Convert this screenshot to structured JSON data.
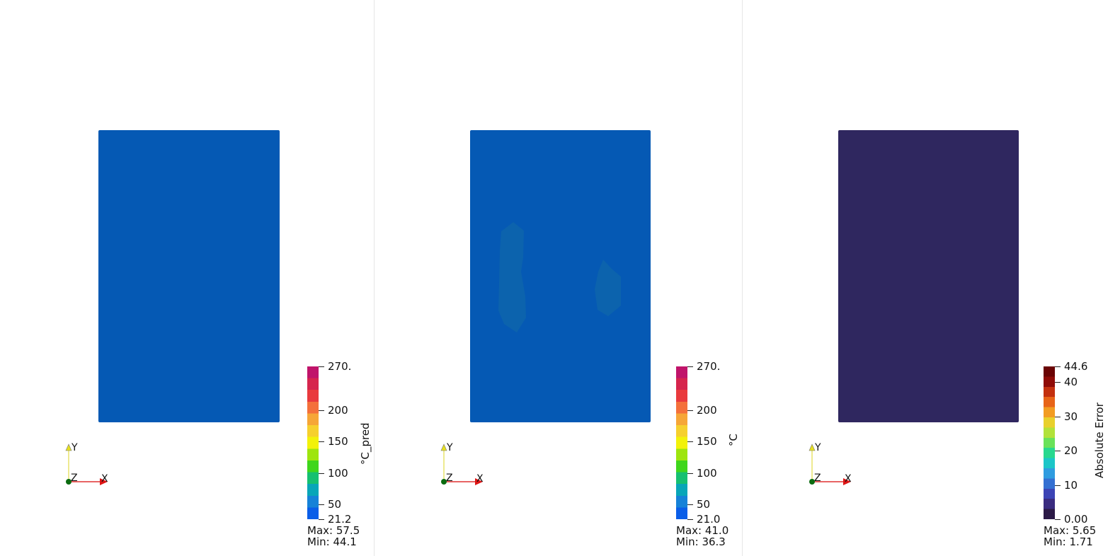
{
  "views": [
    {
      "id": "predicted",
      "mesh_color": "#0559b4",
      "colorbar": {
        "title": "°C_pred",
        "gradient": [
          "#0a5ee8",
          "#1682d8",
          "#08a6b8",
          "#16c071",
          "#3fd61c",
          "#9ee50e",
          "#f2f20a",
          "#f6d02e",
          "#f6a637",
          "#f4703b",
          "#e93a3d",
          "#d6254d",
          "#c0146a"
        ],
        "ticks": [
          {
            "label": "270.",
            "frac": 1.0
          },
          {
            "label": "200",
            "frac": 0.7129
          },
          {
            "label": "150",
            "frac": 0.508
          },
          {
            "label": "100",
            "frac": 0.3031
          },
          {
            "label": "50",
            "frac": 0.0982
          },
          {
            "label": "21.2",
            "frac": 0.0
          }
        ],
        "max_text": "Max: 57.5",
        "min_text": "Min: 44.1"
      },
      "axes": {
        "x": "X",
        "y": "Y",
        "z": "Z"
      }
    },
    {
      "id": "ground-truth",
      "mesh_color": "#0559b4",
      "blob_color": "#0c63ad",
      "colorbar": {
        "title": "°C",
        "gradient": [
          "#0a5ee8",
          "#1682d8",
          "#08a6b8",
          "#16c071",
          "#3fd61c",
          "#9ee50e",
          "#f2f20a",
          "#f6d02e",
          "#f6a637",
          "#f4703b",
          "#e93a3d",
          "#d6254d",
          "#c0146a"
        ],
        "ticks": [
          {
            "label": "270.",
            "frac": 1.0
          },
          {
            "label": "200",
            "frac": 0.7124
          },
          {
            "label": "150",
            "frac": 0.5072
          },
          {
            "label": "100",
            "frac": 0.302
          },
          {
            "label": "50",
            "frac": 0.0968
          },
          {
            "label": "21.0",
            "frac": 0.0
          }
        ],
        "max_text": "Max: 41.0",
        "min_text": "Min: 36.3"
      },
      "axes": {
        "x": "X",
        "y": "Y",
        "z": "Z"
      }
    },
    {
      "id": "absolute-error",
      "mesh_color": "#2f275f",
      "colorbar": {
        "title": "Absolute Error",
        "gradient": [
          "#2b1a46",
          "#3a2c80",
          "#3c44b5",
          "#3470d2",
          "#2f9ce0",
          "#1cc6c8",
          "#28d88f",
          "#6ae25a",
          "#b2e23a",
          "#e8d02c",
          "#f29c22",
          "#e76418",
          "#c3300f",
          "#8f0b07",
          "#6a0404"
        ],
        "ticks": [
          {
            "label": "44.6",
            "frac": 1.0
          },
          {
            "label": "40",
            "frac": 0.8969
          },
          {
            "label": "30",
            "frac": 0.6726
          },
          {
            "label": "20",
            "frac": 0.4484
          },
          {
            "label": "10",
            "frac": 0.2242
          },
          {
            "label": "0.00",
            "frac": 0.0
          }
        ],
        "max_text": "Max: 5.65",
        "min_text": "Min: 1.71"
      },
      "axes": {
        "x": "X",
        "y": "Y",
        "z": "Z"
      }
    }
  ]
}
